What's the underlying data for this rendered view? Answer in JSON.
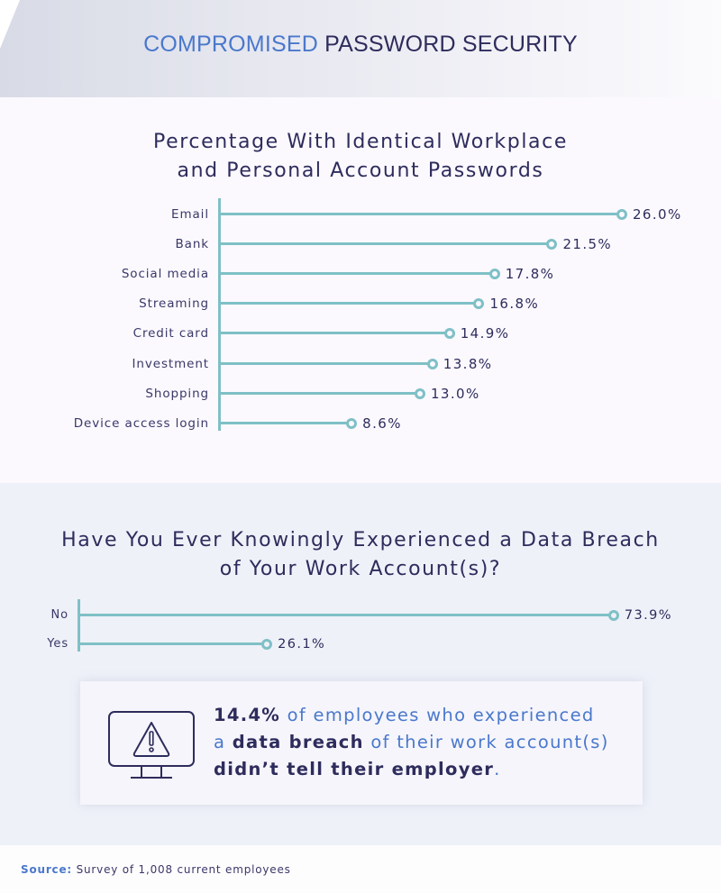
{
  "header": {
    "title_accent": "COMPROMISED",
    "title_rest": "PASSWORD SECURITY"
  },
  "colors": {
    "accent_blue": "#4a78cc",
    "navy": "#2e2c5c",
    "teal": "#7fc0c6",
    "section1_bg": "#fbf9fe",
    "section2_bg": "#eef1f8"
  },
  "chart1": {
    "title_line1": "Percentage With Identical Workplace",
    "title_line2": "and Personal Account Passwords"
  },
  "chart2": {
    "title_line1": "Have You Ever Knowingly Experienced a Data Breach",
    "title_line2": "of Your Work Account(s)?"
  },
  "chart_data": [
    {
      "type": "bar",
      "orientation": "horizontal",
      "style": "lollipop",
      "title": "Percentage With Identical Workplace and Personal Account Passwords",
      "categories": [
        "Email",
        "Bank",
        "Social media",
        "Streaming",
        "Credit card",
        "Investment",
        "Shopping",
        "Device access login"
      ],
      "values": [
        26.0,
        21.5,
        17.8,
        16.8,
        14.9,
        13.8,
        13.0,
        8.6
      ],
      "labels": [
        "26.0%",
        "21.5%",
        "17.8%",
        "16.8%",
        "14.9%",
        "13.8%",
        "13.0%",
        "8.6%"
      ],
      "xlabel": "",
      "ylabel": "",
      "unit": "%",
      "grid": false,
      "legend": null
    },
    {
      "type": "bar",
      "orientation": "horizontal",
      "style": "lollipop",
      "title": "Have You Ever Knowingly Experienced a Data Breach of Your Work Account(s)?",
      "categories": [
        "No",
        "Yes"
      ],
      "values": [
        73.9,
        26.1
      ],
      "labels": [
        "73.9%",
        "26.1%"
      ],
      "xlabel": "",
      "ylabel": "",
      "unit": "%",
      "grid": false,
      "legend": null
    }
  ],
  "callout": {
    "icon": "monitor-warning-icon",
    "stat": "14.4%",
    "text1": " of employees who experienced",
    "text2a": "a ",
    "bold2": "data breach",
    "text2b": " of their work account(s)",
    "bold3": "didn’t tell their employer",
    "text3": "."
  },
  "footer": {
    "source_label": "Source:",
    "source_text": " Survey of 1,008 current employees"
  }
}
